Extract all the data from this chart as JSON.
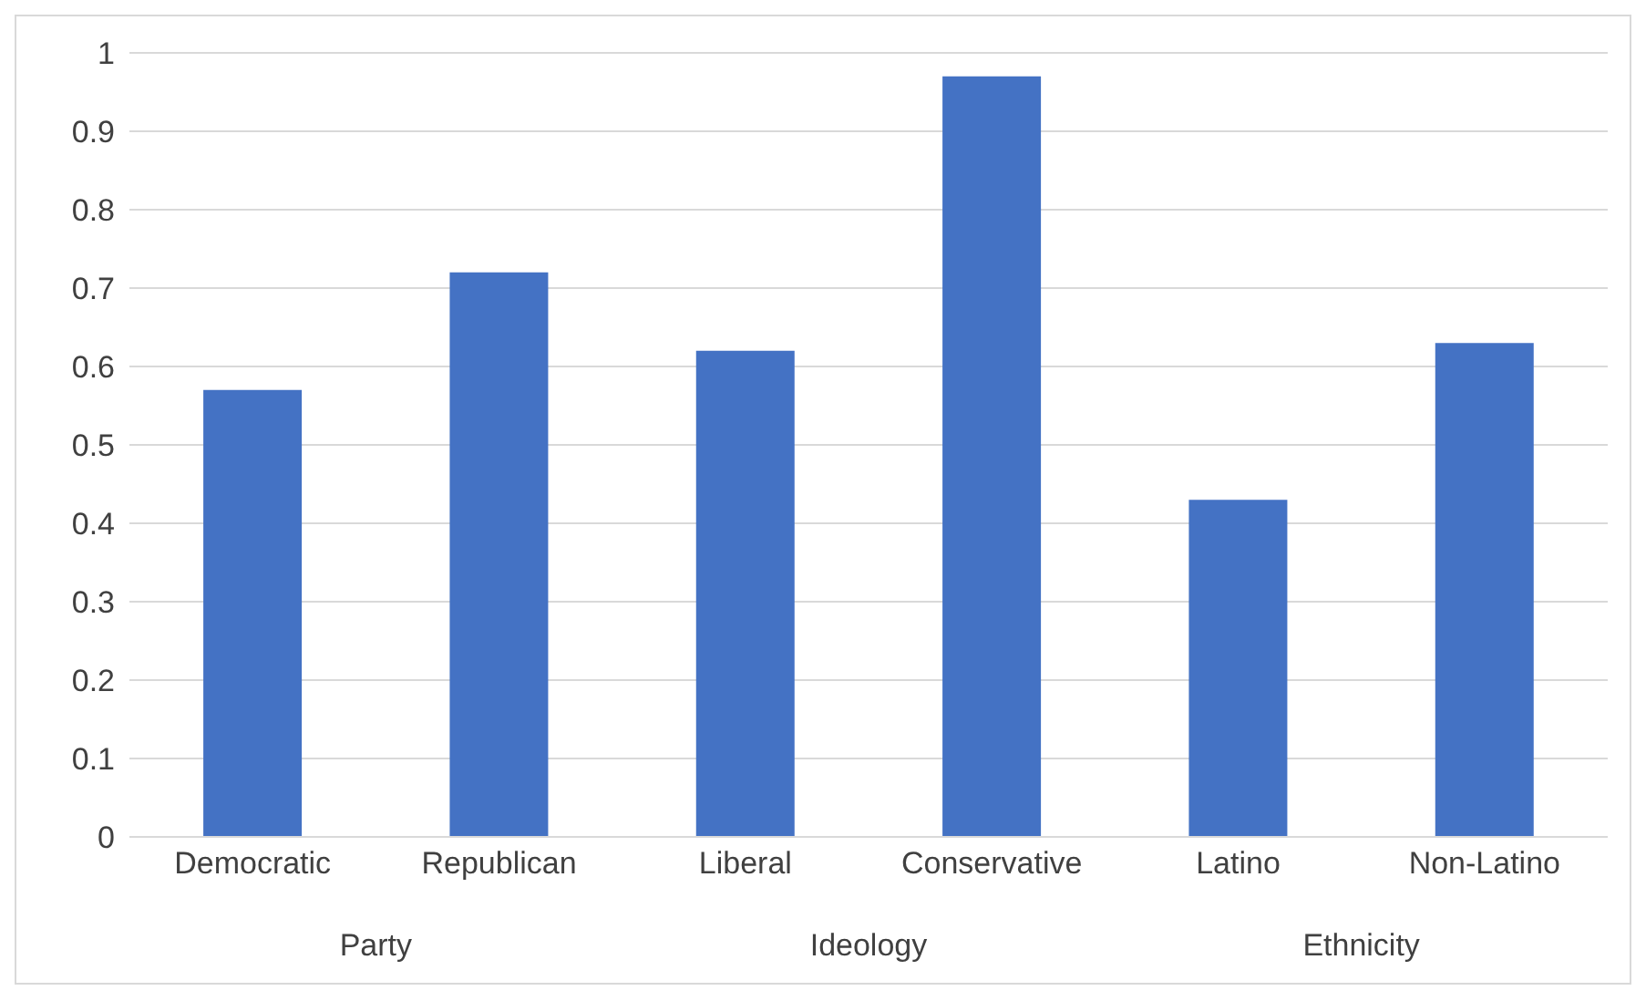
{
  "chart_data": {
    "type": "bar",
    "categories": [
      "Democratic",
      "Republican",
      "Liberal",
      "Conservative",
      "Latino",
      "Non-Latino"
    ],
    "values": [
      0.57,
      0.72,
      0.62,
      0.97,
      0.43,
      0.63
    ],
    "color": "#4472c4",
    "ylim": [
      0,
      1
    ],
    "yticks": [
      0,
      0.1,
      0.2,
      0.3,
      0.4,
      0.5,
      0.6,
      0.7,
      0.8,
      0.9,
      1
    ],
    "grid": "y",
    "annotations": [
      "Party",
      "Ideology",
      "Ethnicity"
    ]
  }
}
